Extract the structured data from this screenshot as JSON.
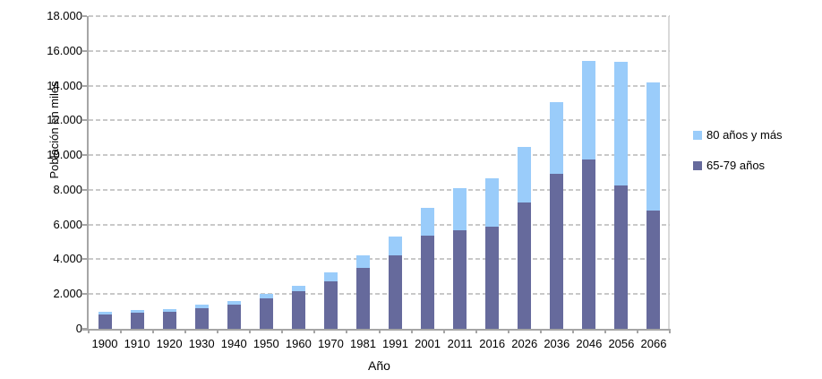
{
  "chart_data": {
    "type": "bar",
    "stacked": true,
    "title": "",
    "xlabel": "Año",
    "ylabel": "Población en miles",
    "ylim": [
      0,
      18000
    ],
    "ytick_step": 2000,
    "ytick_labels": [
      "0",
      "2.000",
      "4.000",
      "6.000",
      "8.000",
      "10.000",
      "12.000",
      "14.000",
      "16.000",
      "18.000"
    ],
    "grid": "horizontal-dashed",
    "legend_position": "right",
    "categories": [
      "1900",
      "1910",
      "1920",
      "1930",
      "1940",
      "1950",
      "1960",
      "1970",
      "1981",
      "1991",
      "2001",
      "2011",
      "2016",
      "2026",
      "2036",
      "2046",
      "2056",
      "2066"
    ],
    "series": [
      {
        "name": "65-79 años",
        "color": "#666a9c",
        "values": [
          850,
          930,
          990,
          1190,
          1400,
          1750,
          2150,
          2720,
          3520,
          4240,
          5360,
          5650,
          5900,
          7250,
          8900,
          9750,
          8250,
          6800
        ]
      },
      {
        "name": "80 años y más",
        "color": "#9accfa",
        "values": [
          115,
          150,
          160,
          200,
          220,
          270,
          350,
          530,
          730,
          1090,
          1600,
          2450,
          2750,
          3200,
          4150,
          5650,
          7100,
          7400
        ]
      }
    ],
    "legend_order": [
      1,
      0
    ]
  },
  "colors": {
    "gridline": "#c9c9c9",
    "axis": "#a6a6a6",
    "plot_border_right": "#d9d9d9",
    "text": "#000000",
    "background": "#ffffff"
  }
}
